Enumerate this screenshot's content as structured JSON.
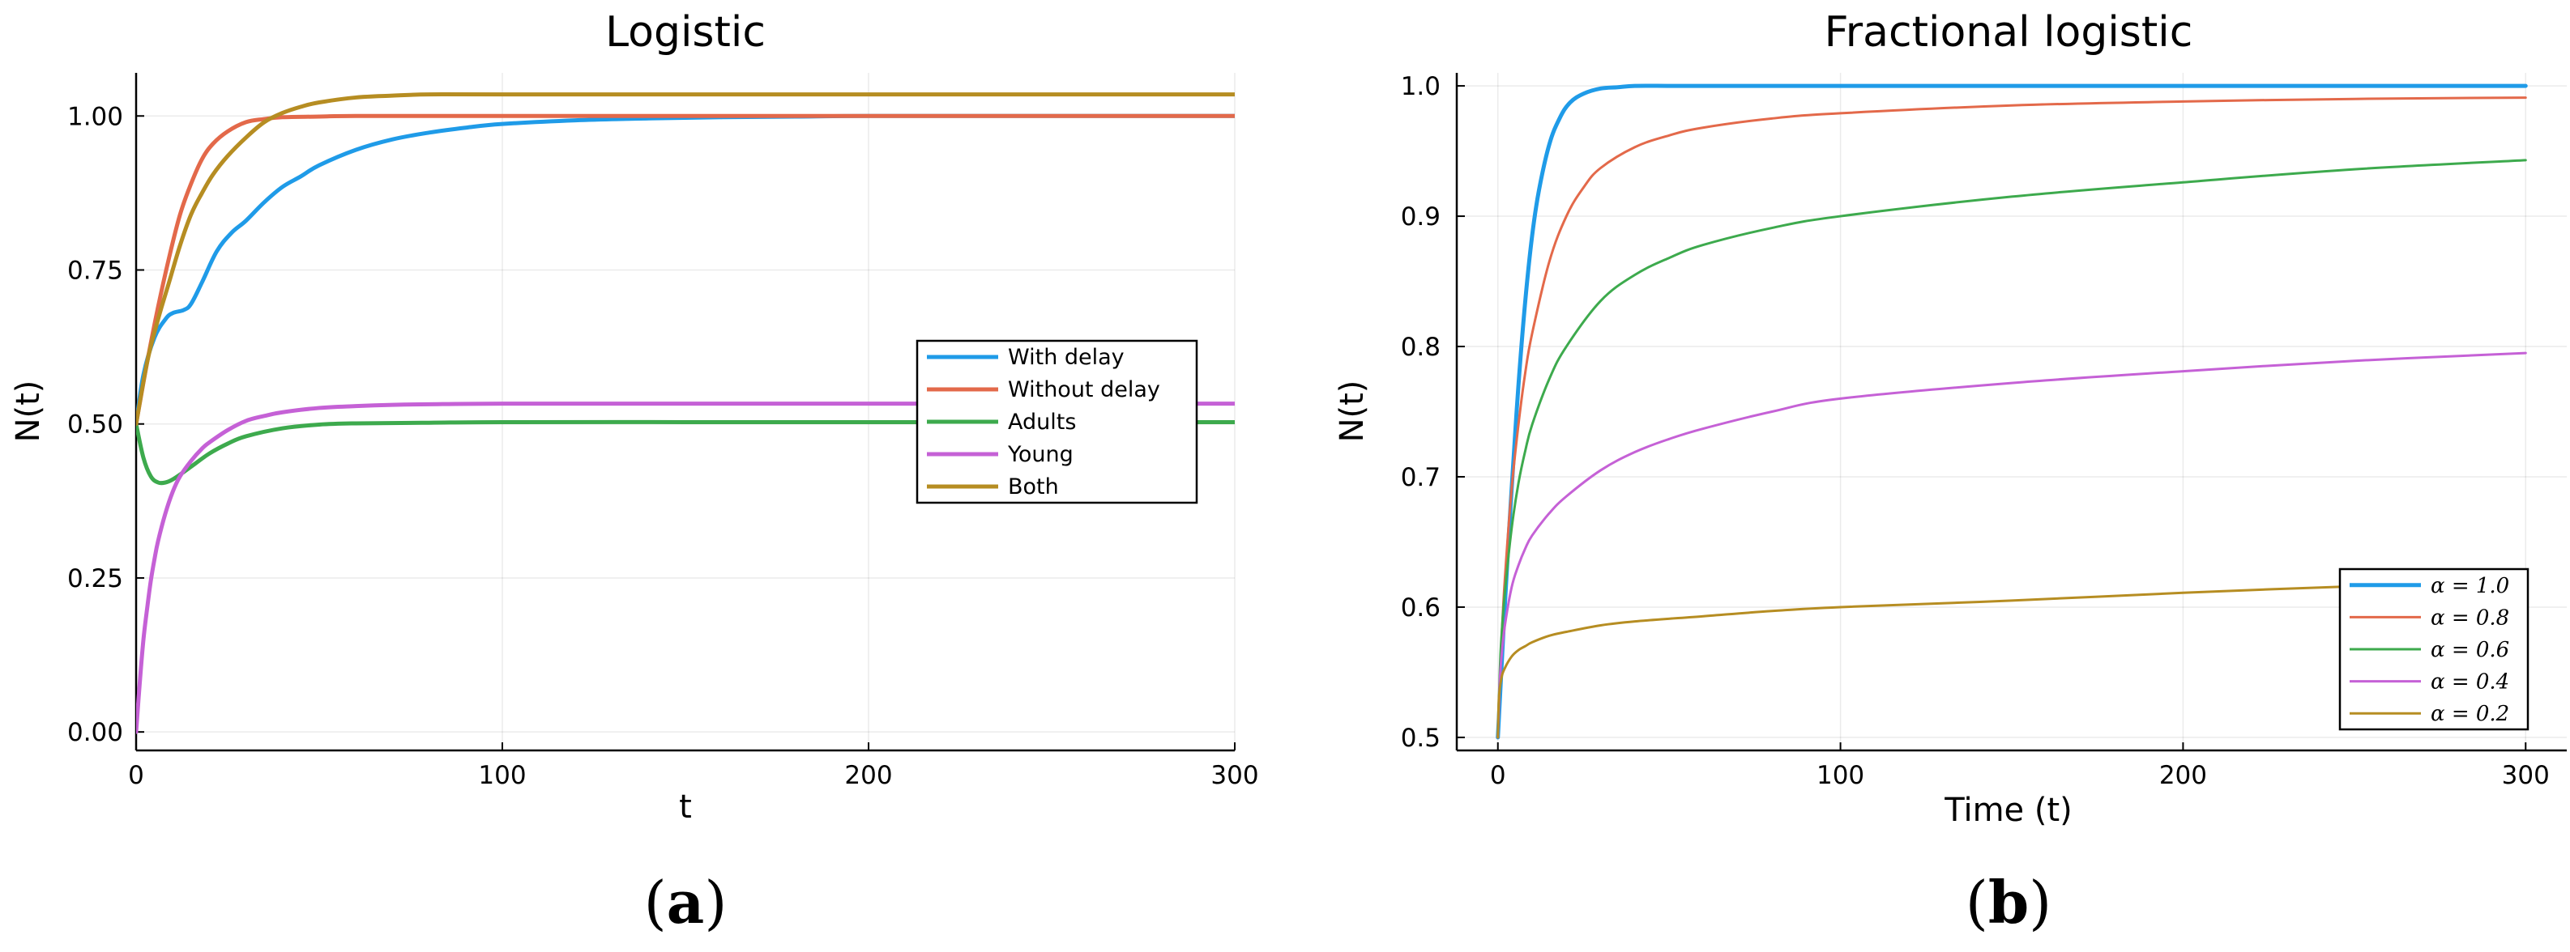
{
  "panels": [
    {
      "label": "(a)",
      "label_letter": "a",
      "chart_data": {
        "type": "line",
        "title": "Logistic",
        "xlabel": "t",
        "ylabel": "N(t)",
        "xlim": [
          0,
          300
        ],
        "ylim": [
          -0.03,
          1.07
        ],
        "xticks": [
          0,
          100,
          200,
          300
        ],
        "xtick_labels": [
          "0",
          "100",
          "200",
          "300"
        ],
        "yticks": [
          0,
          0.25,
          0.5,
          0.75,
          1.0
        ],
        "ytick_labels": [
          "0.00",
          "0.25",
          "0.50",
          "0.75",
          "1.00"
        ],
        "grid": true,
        "legend_position": "right-center",
        "series": [
          {
            "name": "With delay",
            "color": "#1f9be8",
            "line_width": 5,
            "x": [
              0,
              2,
              5,
              8,
              10,
              13,
              15,
              18,
              22,
              26,
              30,
              35,
              40,
              45,
              50,
              60,
              70,
              80,
              90,
              100,
              120,
              140,
              160,
              180,
              200,
              250,
              300
            ],
            "y": [
              0.5,
              0.58,
              0.64,
              0.67,
              0.68,
              0.685,
              0.695,
              0.73,
              0.78,
              0.81,
              0.83,
              0.86,
              0.885,
              0.902,
              0.92,
              0.945,
              0.962,
              0.973,
              0.981,
              0.987,
              0.993,
              0.996,
              0.998,
              0.999,
              1.0,
              1.0,
              1.0
            ]
          },
          {
            "name": "Without delay",
            "color": "#e3694a",
            "line_width": 5,
            "x": [
              0,
              3,
              6,
              9,
              12,
              15,
              18,
              21,
              25,
              30,
              35,
              40,
              50,
              60,
              100,
              200,
              300
            ],
            "y": [
              0.5,
              0.6,
              0.69,
              0.77,
              0.84,
              0.89,
              0.93,
              0.955,
              0.975,
              0.99,
              0.995,
              0.998,
              0.999,
              1.0,
              1.0,
              1.0,
              1.0
            ]
          },
          {
            "name": "Adults",
            "color": "#3daa4d",
            "line_width": 5,
            "x": [
              0,
              2,
              4,
              6,
              8,
              10,
              13,
              16,
              20,
              25,
              30,
              40,
              50,
              60,
              80,
              100,
              150,
              200,
              300
            ],
            "y": [
              0.5,
              0.445,
              0.415,
              0.405,
              0.405,
              0.41,
              0.422,
              0.435,
              0.452,
              0.468,
              0.48,
              0.493,
              0.499,
              0.501,
              0.502,
              0.503,
              0.503,
              0.503,
              0.503
            ]
          },
          {
            "name": "Young",
            "color": "#c561d6",
            "line_width": 5,
            "x": [
              0,
              1,
              2,
              3,
              4,
              5,
              6,
              8,
              10,
              12,
              15,
              18,
              20,
              25,
              30,
              35,
              40,
              50,
              60,
              70,
              80,
              100,
              150,
              200,
              300
            ],
            "y": [
              0.0,
              0.08,
              0.15,
              0.2,
              0.245,
              0.28,
              0.31,
              0.355,
              0.39,
              0.415,
              0.44,
              0.46,
              0.47,
              0.49,
              0.505,
              0.513,
              0.519,
              0.526,
              0.529,
              0.531,
              0.532,
              0.533,
              0.533,
              0.533,
              0.533
            ]
          },
          {
            "name": "Both",
            "color": "#b68d22",
            "line_width": 5,
            "x": [
              0,
              3,
              6,
              9,
              12,
              15,
              18,
              21,
              25,
              30,
              35,
              40,
              45,
              50,
              60,
              70,
              80,
              100,
              150,
              200,
              300
            ],
            "y": [
              0.5,
              0.6,
              0.67,
              0.73,
              0.79,
              0.84,
              0.875,
              0.905,
              0.935,
              0.965,
              0.99,
              1.005,
              1.015,
              1.022,
              1.03,
              1.033,
              1.035,
              1.035,
              1.035,
              1.035,
              1.035
            ]
          }
        ]
      }
    },
    {
      "label": "(b)",
      "label_letter": "b",
      "chart_data": {
        "type": "line",
        "title": "Fractional logistic",
        "xlabel": "Time (t)",
        "ylabel": "N(t)",
        "xlim": [
          -12,
          312
        ],
        "ylim": [
          0.49,
          1.01
        ],
        "xticks": [
          0,
          100,
          200,
          300
        ],
        "xtick_labels": [
          "0",
          "100",
          "200",
          "300"
        ],
        "yticks": [
          0.5,
          0.6,
          0.7,
          0.8,
          0.9,
          1.0
        ],
        "ytick_labels": [
          "0.5",
          "0.6",
          "0.7",
          "0.8",
          "0.9",
          "1.0"
        ],
        "grid": true,
        "legend_position": "bottom-right",
        "series": [
          {
            "name": "α = 1.0",
            "color": "#1f9be8",
            "line_width": 5,
            "x": [
              0,
              2,
              4,
              6,
              8,
              10,
              12,
              15,
              18,
              21,
              25,
              30,
              35,
              40,
              50,
              60,
              100,
              200,
              300
            ],
            "y": [
              0.5,
              0.6,
              0.69,
              0.77,
              0.835,
              0.885,
              0.92,
              0.955,
              0.975,
              0.987,
              0.994,
              0.998,
              0.999,
              1.0,
              1.0,
              1.0,
              1.0,
              1.0,
              1.0
            ]
          },
          {
            "name": "α = 0.8",
            "color": "#e3694a",
            "line_width": 3,
            "x": [
              0,
              1,
              2,
              4,
              6,
              8,
              10,
              15,
              20,
              25,
              30,
              40,
              50,
              60,
              80,
              100,
              150,
              200,
              250,
              300
            ],
            "y": [
              0.5,
              0.57,
              0.62,
              0.69,
              0.74,
              0.78,
              0.81,
              0.865,
              0.9,
              0.922,
              0.937,
              0.953,
              0.962,
              0.968,
              0.975,
              0.979,
              0.985,
              0.988,
              0.99,
              0.991
            ]
          },
          {
            "name": "α = 0.6",
            "color": "#3daa4d",
            "line_width": 3,
            "x": [
              0,
              0.5,
              1,
              2,
              4,
              6,
              8,
              10,
              15,
              20,
              30,
              40,
              50,
              60,
              80,
              100,
              150,
              200,
              250,
              300
            ],
            "y": [
              0.5,
              0.545,
              0.575,
              0.61,
              0.66,
              0.695,
              0.72,
              0.74,
              0.775,
              0.8,
              0.835,
              0.855,
              0.868,
              0.878,
              0.891,
              0.9,
              0.915,
              0.926,
              0.936,
              0.943
            ]
          },
          {
            "name": "α = 0.4",
            "color": "#c561d6",
            "line_width": 3,
            "x": [
              0,
              0.5,
              1,
              2,
              4,
              6,
              8,
              10,
              15,
              20,
              30,
              40,
              50,
              60,
              80,
              100,
              150,
              200,
              250,
              300
            ],
            "y": [
              0.5,
              0.54,
              0.56,
              0.585,
              0.615,
              0.632,
              0.645,
              0.655,
              0.672,
              0.685,
              0.705,
              0.719,
              0.729,
              0.737,
              0.75,
              0.76,
              0.772,
              0.781,
              0.789,
              0.795
            ]
          },
          {
            "name": "α = 0.2",
            "color": "#b68d22",
            "line_width": 3,
            "x": [
              0,
              0.3,
              1,
              2,
              4,
              6,
              8,
              10,
              15,
              20,
              30,
              40,
              60,
              80,
              100,
              150,
              200,
              250,
              300
            ],
            "y": [
              0.5,
              0.53,
              0.545,
              0.553,
              0.562,
              0.567,
              0.57,
              0.573,
              0.578,
              0.581,
              0.586,
              0.589,
              0.593,
              0.597,
              0.6,
              0.605,
              0.611,
              0.616,
              0.62
            ]
          }
        ]
      }
    }
  ]
}
